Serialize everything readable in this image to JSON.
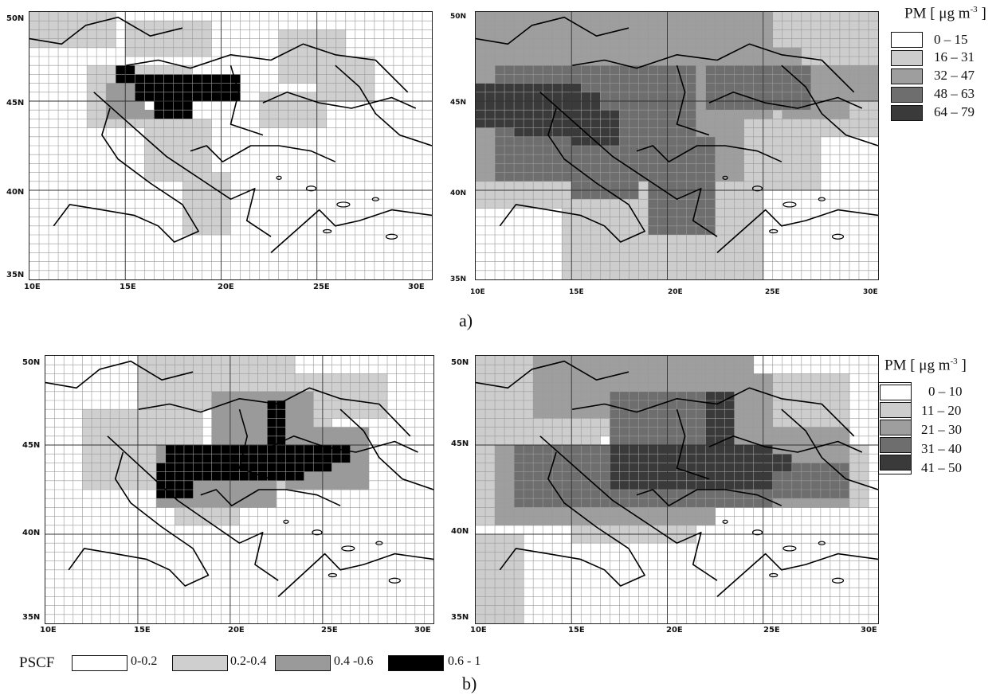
{
  "maps": [
    {
      "id": "a-left",
      "lat_labels": [
        "50N",
        "45N",
        "40N",
        "35N"
      ],
      "lon_labels": [
        "10E",
        "15E",
        "20E",
        "25E",
        "30E"
      ]
    },
    {
      "id": "a-right",
      "lat_labels": [
        "50N",
        "45N",
        "40N",
        "35N"
      ],
      "lon_labels": [
        "10E",
        "15E",
        "20E",
        "25E",
        "30E"
      ]
    },
    {
      "id": "b-left",
      "lat_labels": [
        "50N",
        "45N",
        "40N",
        "35N"
      ],
      "lon_labels": [
        "10E",
        "15E",
        "20E",
        "25E",
        "30E"
      ]
    },
    {
      "id": "b-right",
      "lat_labels": [
        "50N",
        "45N",
        "40N",
        "35N"
      ],
      "lon_labels": [
        "10E",
        "15E",
        "20E",
        "25E",
        "30E"
      ]
    }
  ],
  "panel_labels": {
    "a": "a)",
    "b": "b)"
  },
  "legend_a": {
    "title_prefix": "PM [ μg m",
    "title_exp": "-3",
    "title_suffix": " ]",
    "classes": [
      "0 – 15",
      "16 – 31",
      "32 – 47",
      "48 – 63",
      "64 – 79"
    ],
    "colors": [
      "#ffffff",
      "#cdcdcd",
      "#9e9e9e",
      "#6e6e6e",
      "#3a3a3a"
    ]
  },
  "legend_b": {
    "title_prefix": "PM [ μg m",
    "title_exp": "-3",
    "title_suffix": " ]",
    "classes": [
      "0 – 10",
      "11 – 20",
      "21 – 30",
      "31 – 40",
      "41 – 50"
    ],
    "colors": [
      "#ffffff",
      "#cdcdcd",
      "#9e9e9e",
      "#6e6e6e",
      "#3a3a3a"
    ]
  },
  "pscf_legend": {
    "title": "PSCF",
    "classes": [
      "0-0.2",
      "0.2-0.4",
      "0.4 -0.6",
      "0.6 - 1"
    ],
    "colors": [
      "#ffffff",
      "#cfcfcf",
      "#9a9a9a",
      "#000000"
    ]
  }
}
